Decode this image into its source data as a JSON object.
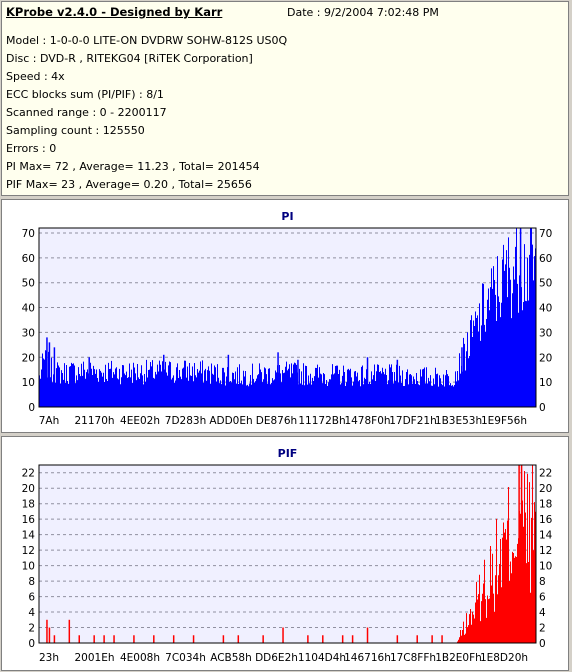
{
  "info": {
    "title": "KProbe v2.4.0 - Designed by Karr",
    "date": "Date : 9/2/2004 7:02:48 PM",
    "lines": [
      "Model : 1-0-0-0 LITE-ON DVDRW SOHW-812S  US0Q",
      "Disc : DVD-R , RITEKG04 [RiTEK Corporation]",
      "Speed : 4x",
      "ECC blocks sum (PI/PIF) : 8/1",
      "Scanned range : 0 - 2200117",
      "Sampling count : 125550",
      "Errors : 0",
      "PI Max= 72 , Average= 11.23 , Total= 201454",
      "PIF Max= 23 , Average= 0.20 , Total= 25656"
    ]
  },
  "chart_data": [
    {
      "type": "bar",
      "title": "PI",
      "color": "#0000ff",
      "ylim": [
        0,
        72
      ],
      "yticks": [
        0,
        10,
        20,
        30,
        40,
        50,
        60,
        70
      ],
      "xticks": [
        "7Ah",
        "21170h",
        "4EE02h",
        "7D283h",
        "ADD0Eh",
        "DE876h",
        "11172Bh",
        "1478F0h",
        "17DF21h",
        "1B3E53h",
        "1E9F56h"
      ],
      "profile": [
        [
          0,
          14
        ],
        [
          0.5,
          18
        ],
        [
          1,
          22
        ],
        [
          2.5,
          17
        ],
        [
          4,
          16
        ],
        [
          8,
          17
        ],
        [
          20,
          16.5
        ],
        [
          30,
          17
        ],
        [
          40,
          15
        ],
        [
          50,
          16
        ],
        [
          60,
          15
        ],
        [
          70,
          15
        ],
        [
          80,
          14
        ],
        [
          83,
          14
        ],
        [
          84,
          17
        ],
        [
          86,
          28
        ],
        [
          88,
          38
        ],
        [
          90,
          48
        ],
        [
          92,
          55
        ],
        [
          94,
          62
        ],
        [
          96,
          68
        ],
        [
          97.5,
          66
        ]
      ],
      "spikes": [
        [
          1.5,
          28
        ],
        [
          2,
          26
        ],
        [
          3,
          24
        ],
        [
          10,
          20
        ],
        [
          25,
          21
        ],
        [
          38,
          21
        ],
        [
          48,
          22
        ],
        [
          52,
          19
        ],
        [
          66,
          20
        ],
        [
          72,
          19
        ],
        [
          85,
          24
        ],
        [
          96.8,
          72
        ]
      ],
      "grid": true
    },
    {
      "type": "bar",
      "title": "PIF",
      "color": "#ff0000",
      "ylim": [
        0,
        23
      ],
      "yticks": [
        0,
        2,
        4,
        6,
        8,
        10,
        12,
        14,
        16,
        18,
        20,
        22
      ],
      "xticks": [
        "23h",
        "2001Eh",
        "4E008h",
        "7C034h",
        "ACB58h",
        "DD6E2h",
        "1104D4h",
        "146716h",
        "17C8FFh",
        "1B2E0Fh",
        "1E8D20h"
      ],
      "profile": [
        [
          0,
          0
        ],
        [
          84,
          0
        ],
        [
          85,
          2
        ],
        [
          87,
          5
        ],
        [
          89,
          9
        ],
        [
          91,
          12
        ],
        [
          93,
          15
        ],
        [
          95,
          19
        ],
        [
          97,
          22
        ],
        [
          97.5,
          20
        ]
      ],
      "spikes": [
        [
          1.5,
          3
        ],
        [
          2,
          2
        ],
        [
          3,
          1
        ],
        [
          6,
          3
        ],
        [
          8,
          1
        ],
        [
          11,
          1
        ],
        [
          13,
          1
        ],
        [
          15,
          1
        ],
        [
          19,
          1
        ],
        [
          23,
          1
        ],
        [
          27,
          1
        ],
        [
          31,
          1
        ],
        [
          37,
          1
        ],
        [
          40,
          1
        ],
        [
          45,
          1
        ],
        [
          49,
          2
        ],
        [
          54,
          1
        ],
        [
          57,
          1
        ],
        [
          61,
          1
        ],
        [
          63,
          1
        ],
        [
          66,
          2
        ],
        [
          72,
          1
        ],
        [
          76,
          1
        ],
        [
          79,
          1
        ],
        [
          81,
          1
        ],
        [
          96.5,
          23
        ],
        [
          97,
          23
        ]
      ],
      "grid": true
    }
  ]
}
